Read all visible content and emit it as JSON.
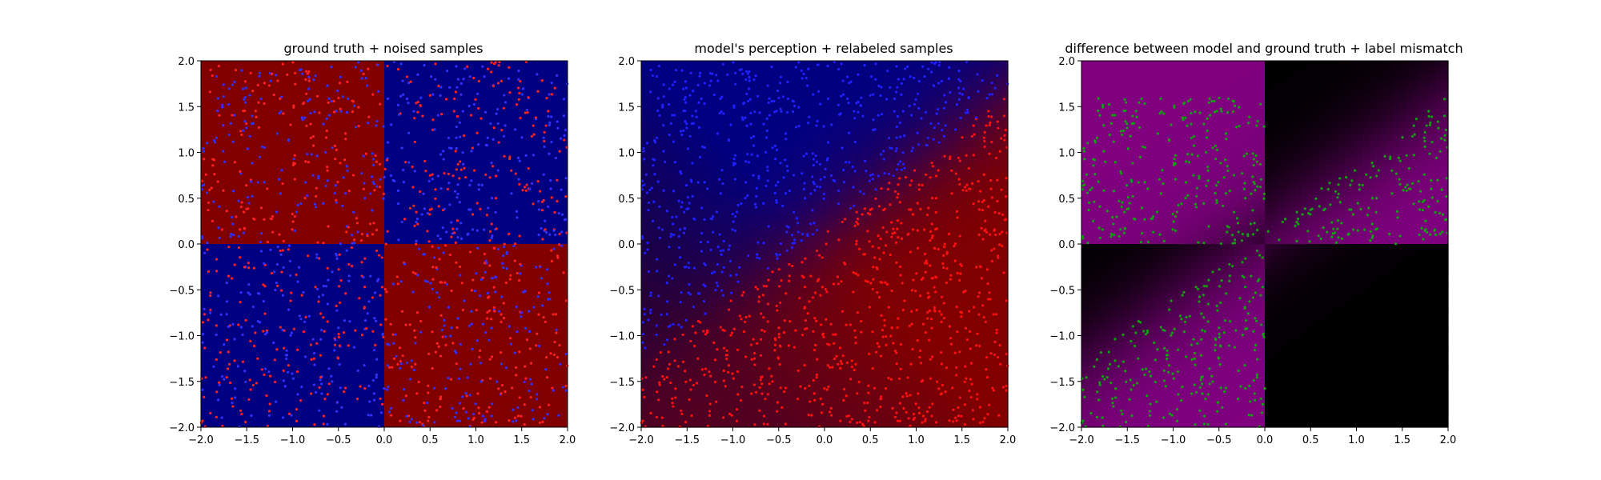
{
  "chart_data": [
    {
      "type": "heatmap",
      "title": "ground truth + noised samples",
      "xlim": [
        -2,
        2
      ],
      "ylim": [
        -2,
        2
      ],
      "xticks": [
        "−2.0",
        "−1.5",
        "−1.0",
        "−0.5",
        "0.0",
        "0.5",
        "1.0",
        "1.5",
        "2.0"
      ],
      "yticks": [
        "−2.0",
        "−1.5",
        "−1.0",
        "−0.5",
        "0.0",
        "0.5",
        "1.0",
        "1.5",
        "2.0"
      ],
      "background": {
        "kind": "xor-quadrants",
        "regions": [
          {
            "quadrant": "x<0, y>0",
            "color": "#800000"
          },
          {
            "quadrant": "x>0, y>0",
            "color": "#000080"
          },
          {
            "quadrant": "x<0, y<0",
            "color": "#000080"
          },
          {
            "quadrant": "x>0, y<0",
            "color": "#800000"
          }
        ]
      },
      "points": [
        {
          "color": "#ff2020",
          "distribution": "uniform",
          "x_range": [
            -2,
            2
          ],
          "y_range": [
            -2,
            2
          ],
          "count_approx": 1000,
          "rule": "mostly inside blue quadrants (label noise)"
        },
        {
          "color": "#3030ff",
          "distribution": "uniform",
          "x_range": [
            -2,
            2
          ],
          "y_range": [
            -2,
            2
          ],
          "count_approx": 1000,
          "rule": "mostly inside red quadrants"
        }
      ]
    },
    {
      "type": "heatmap",
      "title": "model's perception + relabeled samples",
      "xlim": [
        -2,
        2
      ],
      "ylim": [
        -2,
        2
      ],
      "xticks": [
        "−2.0",
        "−1.5",
        "−1.0",
        "−0.5",
        "0.0",
        "0.5",
        "1.0",
        "1.5",
        "2.0"
      ],
      "yticks": [
        "−2.0",
        "−1.5",
        "−1.0",
        "−0.5",
        "0.0",
        "0.5",
        "1.0",
        "1.5",
        "2.0"
      ],
      "background": {
        "kind": "smooth-decision-surface",
        "colors": {
          "class_blue": "#000080",
          "class_red": "#800000",
          "uncertain": "#200020"
        },
        "description": "blue in the upper half, red in the lower right, dark purple blend in the lower left"
      },
      "points": [
        {
          "color": "#2020ff",
          "distribution": "uniform",
          "x_range": [
            -2,
            2
          ],
          "y_range": [
            -2,
            2
          ],
          "rule": "samples relabeled blue by the model"
        },
        {
          "color": "#ff1010",
          "distribution": "uniform",
          "x_range": [
            -2,
            2
          ],
          "y_range": [
            -2,
            2
          ],
          "rule": "samples relabeled red by the model"
        }
      ]
    },
    {
      "type": "heatmap",
      "title": "difference between model and ground truth + label mismatch",
      "xlim": [
        -2,
        2
      ],
      "ylim": [
        -2,
        2
      ],
      "xticks": [
        "−2.0",
        "−1.5",
        "−1.0",
        "−0.5",
        "0.0",
        "0.5",
        "1.0",
        "1.5",
        "2.0"
      ],
      "yticks": [
        "−2.0",
        "−1.5",
        "−1.0",
        "−0.5",
        "0.0",
        "0.5",
        "1.0",
        "1.5",
        "2.0"
      ],
      "background": {
        "kind": "difference-map",
        "colors": {
          "agree": "#000000",
          "disagree": "#800080"
        },
        "description": "magenta where model and ground truth disagree, black where they agree"
      },
      "points": [
        {
          "color": "#10a010",
          "distribution": "uniform",
          "x_range": [
            -2,
            2
          ],
          "y_range": [
            -2,
            1.6
          ],
          "rule": "samples whose label mismatches"
        }
      ]
    }
  ]
}
